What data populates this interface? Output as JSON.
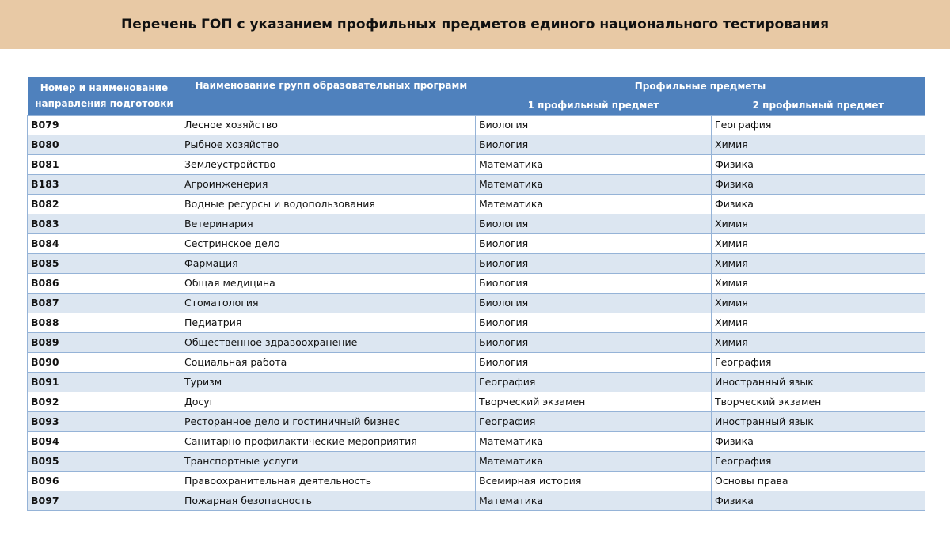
{
  "header": {
    "title": "Перечень ГОП с указанием профильных предметов единого национального тестирования"
  },
  "table": {
    "columns": {
      "code": "Номер и наименование направления подготовки",
      "group": "Наименование групп образовательных программ",
      "subjects": "Профильные предметы",
      "subject1": "1 профильный предмет",
      "subject2": "2 профильный предмет"
    },
    "rows": [
      [
        "B079",
        "Лесное хозяйство",
        "Биология",
        "География"
      ],
      [
        "B080",
        "Рыбное хозяйство",
        "Биология",
        "Химия"
      ],
      [
        "B081",
        "Землеустройство",
        "Математика",
        "Физика"
      ],
      [
        "B183",
        "Агроинженерия",
        "Математика",
        "Физика"
      ],
      [
        "B082",
        "Водные ресурсы и водопользования",
        "Математика",
        "Физика"
      ],
      [
        "B083",
        "Ветеринария",
        "Биология",
        "Химия"
      ],
      [
        "B084",
        "Сестринское дело",
        "Биология",
        "Химия"
      ],
      [
        "B085",
        "Фармация",
        "Биология",
        "Химия"
      ],
      [
        "B086",
        "Общая медицина",
        "Биология",
        "Химия"
      ],
      [
        "B087",
        "Стоматология",
        "Биология",
        "Химия"
      ],
      [
        "B088",
        "Педиатрия",
        "Биология",
        "Химия"
      ],
      [
        "B089",
        "Общественное здравоохранение",
        "Биология",
        "Химия"
      ],
      [
        "B090",
        "Социальная работа",
        "Биология",
        "География"
      ],
      [
        "B091",
        "Туризм",
        "География",
        "Иностранный язык"
      ],
      [
        "B092",
        "Досуг",
        "Творческий экзамен",
        "Творческий экзамен"
      ],
      [
        "B093",
        "Ресторанное дело и гостиничный бизнес",
        "География",
        "Иностранный язык"
      ],
      [
        "B094",
        "Санитарно-профилактические  мероприятия",
        "Математика",
        "Физика"
      ],
      [
        "B095",
        "Транспортные  услуги",
        "Математика",
        "География"
      ],
      [
        "B096",
        "Правоохранительная деятельность",
        "Всемирная история",
        "Основы права"
      ],
      [
        "B097",
        "Пожарная безопасность",
        "Математика",
        "Физика"
      ]
    ]
  }
}
